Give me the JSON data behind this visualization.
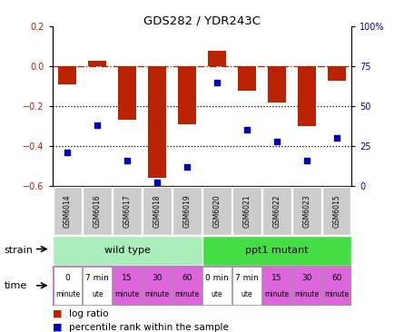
{
  "title": "GDS282 / YDR243C",
  "samples": [
    "GSM6014",
    "GSM6016",
    "GSM6017",
    "GSM6018",
    "GSM6019",
    "GSM6020",
    "GSM6021",
    "GSM6022",
    "GSM6023",
    "GSM6015"
  ],
  "log_ratios": [
    -0.09,
    0.03,
    -0.27,
    -0.56,
    -0.29,
    0.08,
    -0.12,
    -0.18,
    -0.3,
    -0.07
  ],
  "percentile_ranks": [
    21,
    38,
    16,
    2,
    12,
    65,
    35,
    28,
    16,
    30
  ],
  "ylim_left": [
    -0.6,
    0.2
  ],
  "ylim_right": [
    0,
    100
  ],
  "yticks_left": [
    -0.6,
    -0.4,
    -0.2,
    0.0,
    0.2
  ],
  "yticks_right": [
    0,
    25,
    50,
    75,
    100
  ],
  "ytick_labels_right": [
    "0",
    "25",
    "50",
    "75",
    "100%"
  ],
  "bar_color": "#bb2200",
  "dot_color": "#0000bb",
  "hline_color": "#bb2200",
  "dotted_color": "#000000",
  "strain_wild_color": "#aaeebb",
  "strain_mutant_color": "#44dd44",
  "time_pink_color": "#dd66dd",
  "time_white_color": "#ffffff",
  "sample_bg_color": "#cccccc",
  "wild_label": "wild type",
  "mutant_label": "ppt1 mutant",
  "strain_label": "strain",
  "time_label": "time",
  "legend_bar_label": "log ratio",
  "legend_dot_label": "percentile rank within the sample",
  "time_labels": [
    [
      "0",
      "minute"
    ],
    [
      "7 min",
      "ute"
    ],
    [
      "15",
      "minute"
    ],
    [
      "30",
      "minute"
    ],
    [
      "60",
      "minute"
    ],
    [
      "0 min",
      "ute"
    ],
    [
      "7 min",
      "ute"
    ],
    [
      "15",
      "minute"
    ],
    [
      "30",
      "minute"
    ],
    [
      "60",
      "minute"
    ]
  ],
  "time_colors": [
    "#ffffff",
    "#ffffff",
    "#dd66dd",
    "#dd66dd",
    "#dd66dd",
    "#ffffff",
    "#ffffff",
    "#dd66dd",
    "#dd66dd",
    "#dd66dd"
  ],
  "n_wild": 5,
  "n_mutant": 5,
  "fig_width": 4.45,
  "fig_height": 3.66,
  "dpi": 100
}
